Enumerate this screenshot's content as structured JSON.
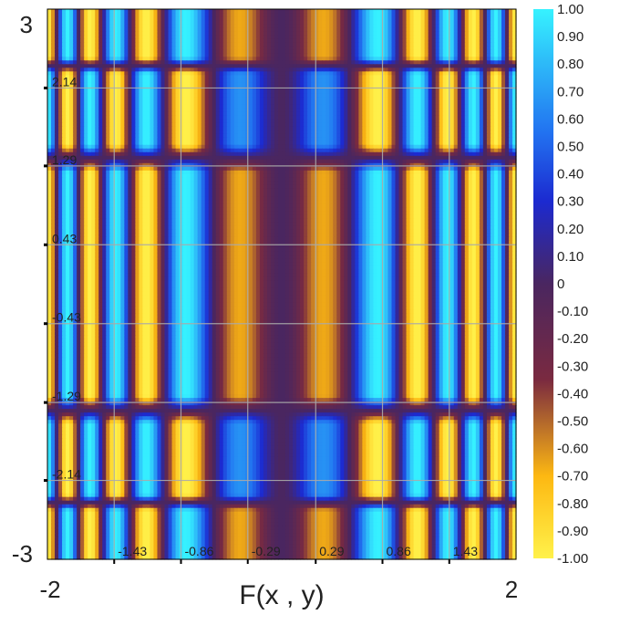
{
  "chart_data": {
    "type": "heatmap",
    "title": "",
    "xlabel": "F(x , y)",
    "ylabel": "",
    "xlim": [
      -2,
      2
    ],
    "ylim": [
      -3,
      3
    ],
    "x_range_labels": [
      "-2",
      "2"
    ],
    "y_range_labels": [
      "3",
      "-3"
    ],
    "x_ticks": [
      -1.43,
      -0.86,
      -0.29,
      0.29,
      0.86,
      1.43
    ],
    "x_tick_labels": [
      "-1.43",
      "-0.86",
      "-0.29",
      "0.29",
      "0.86",
      "1.43"
    ],
    "y_ticks": [
      2.14,
      1.29,
      0.43,
      -0.43,
      -1.29,
      -2.14
    ],
    "y_tick_labels": [
      "2.14",
      "1.29",
      "0.43",
      "-0.43",
      "-1.29",
      "-2.14"
    ],
    "grid": true,
    "value_range": [
      -1,
      1
    ],
    "colorbar": {
      "ticks": [
        1.0,
        0.9,
        0.8,
        0.7,
        0.6,
        0.5,
        0.4,
        0.3,
        0.2,
        0.1,
        0,
        -0.1,
        -0.2,
        -0.3,
        -0.4,
        -0.5,
        -0.6,
        -0.7,
        -0.8,
        -0.9,
        -1.0
      ],
      "tick_labels": [
        "1.00",
        "0.90",
        "0.80",
        "0.70",
        "0.60",
        "0.50",
        "0.40",
        "0.30",
        "0.20",
        "0.10",
        "0",
        "-0.10",
        "-0.20",
        "-0.30",
        "-0.40",
        "-0.50",
        "-0.60",
        "-0.70",
        "-0.80",
        "-0.90",
        "-1.00"
      ],
      "colors": [
        "#fff14a",
        "#fdb812",
        "#7a2a40",
        "#4a2660",
        "#1c2ad0",
        "#2272f0",
        "#36f2ff"
      ],
      "color_stops": [
        -1.0,
        -0.7,
        -0.35,
        0,
        0.3,
        0.55,
        1.0
      ]
    },
    "function_description_source": "cos-product pattern with maxima (cyan) and minima (yellow)"
  }
}
